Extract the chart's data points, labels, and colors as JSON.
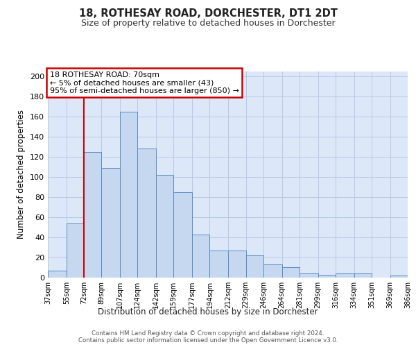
{
  "title1": "18, ROTHESAY ROAD, DORCHESTER, DT1 2DT",
  "title2": "Size of property relative to detached houses in Dorchester",
  "xlabel": "Distribution of detached houses by size in Dorchester",
  "ylabel": "Number of detached properties",
  "bin_edges": [
    37,
    55,
    72,
    89,
    107,
    124,
    142,
    159,
    177,
    194,
    212,
    229,
    246,
    264,
    281,
    299,
    316,
    334,
    351,
    369,
    386
  ],
  "bar_heights": [
    7,
    54,
    125,
    109,
    165,
    128,
    102,
    85,
    43,
    27,
    27,
    22,
    13,
    10,
    4,
    3,
    4,
    4,
    0,
    2
  ],
  "bar_color": "#c5d8f0",
  "bar_edge_color": "#5b8ac5",
  "grid_color": "#b8c8e8",
  "background_color": "#dce8f8",
  "red_line_x": 72,
  "annotation_line1": "18 ROTHESAY ROAD: 70sqm",
  "annotation_line2": "← 5% of detached houses are smaller (43)",
  "annotation_line3": "95% of semi-detached houses are larger (850) →",
  "footer_text": "Contains HM Land Registry data © Crown copyright and database right 2024.\nContains public sector information licensed under the Open Government Licence v3.0.",
  "ylim": [
    0,
    205
  ],
  "yticks": [
    0,
    20,
    40,
    60,
    80,
    100,
    120,
    140,
    160,
    180,
    200
  ]
}
